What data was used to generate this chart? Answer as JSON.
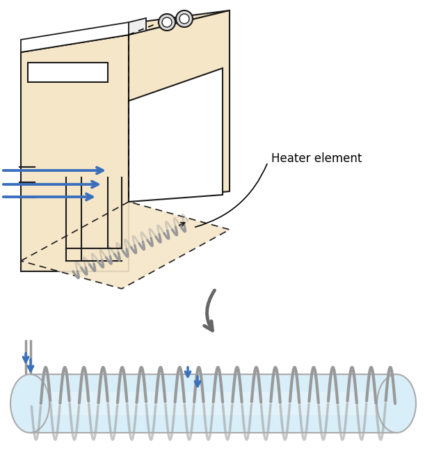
{
  "bg_color": "#ffffff",
  "dryer_fill": "#f5e6c8",
  "dryer_edge": "#1a1a1a",
  "coil_color": "#999999",
  "coil_edge": "#777777",
  "cylinder_fill_top": "#d8eef8",
  "cylinder_fill_mid": "#e8f4fc",
  "cylinder_edge": "#aaaaaa",
  "arrow_color": "#3a6fbd",
  "gray_arrow_color": "#666666",
  "heater_label": "Heater element",
  "label_fontsize": 12,
  "figsize": [
    6.11,
    6.54
  ],
  "dpi": 100
}
